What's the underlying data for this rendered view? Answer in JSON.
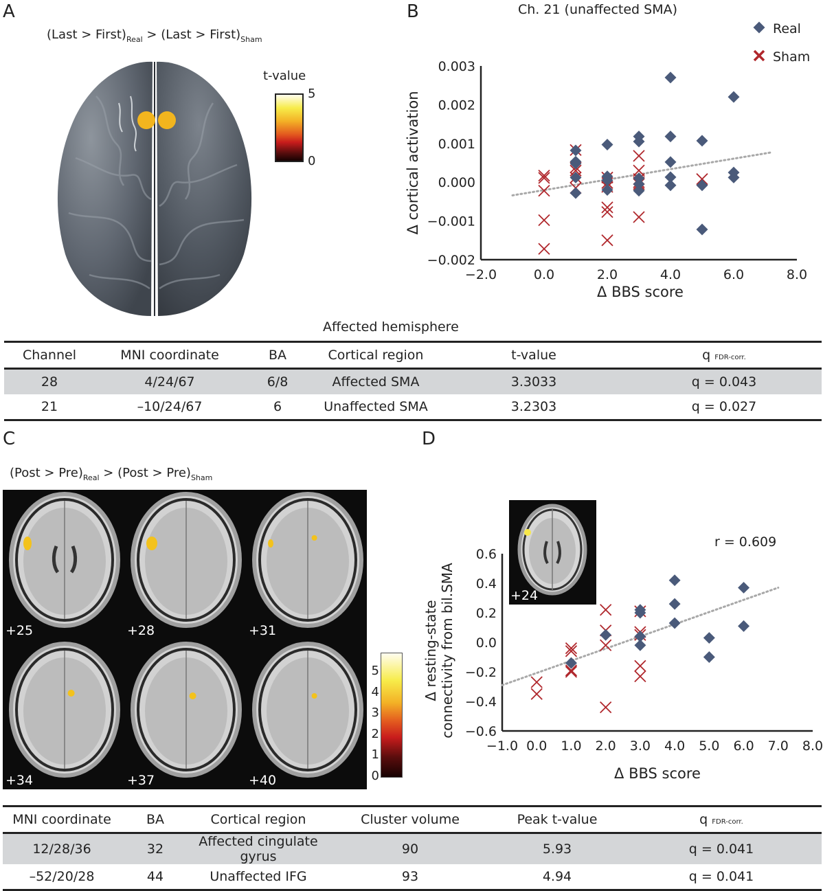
{
  "panel_a": {
    "letter": "A",
    "contrast": {
      "part1": "(Last > First)",
      "sub1": "Real",
      "part2": " > (Last > First)",
      "sub2": "Sham"
    },
    "colorbar": {
      "title": "t-value",
      "max_label": "5",
      "min_label": "0"
    },
    "activation_color": "#f2b51e"
  },
  "table_top": {
    "caption": "Affected hemisphere",
    "headers": [
      "Channel",
      "MNI coordinate",
      "BA",
      "Cortical region",
      "t-value",
      "q"
    ],
    "q_sub": "FDR-corr.",
    "rows": [
      [
        "28",
        "4/24/67",
        "6/8",
        "Affected SMA",
        "3.3033",
        "q = 0.043"
      ],
      [
        "21",
        "–10/24/67",
        "6",
        "Unaffected SMA",
        "3.2303",
        "q = 0.027"
      ]
    ]
  },
  "panel_c": {
    "letter": "C",
    "contrast": {
      "part1": "(Post > Pre)",
      "sub1": "Real",
      "part2": " > (Post > Pre)",
      "sub2": "Sham"
    },
    "slices": [
      "+25",
      "+28",
      "+31",
      "+34",
      "+37",
      "+40"
    ],
    "colorbar_ticks": [
      "5",
      "4",
      "3",
      "2",
      "1",
      "0"
    ]
  },
  "table_bottom": {
    "headers": [
      "MNI coordinate",
      "BA",
      "Cortical region",
      "Cluster volume",
      "Peak t-value",
      "q"
    ],
    "q_sub": "FDR-corr.",
    "rows": [
      [
        "12/28/36",
        "32",
        "Affected cingulate gyrus",
        "90",
        "5.93",
        "q = 0.041"
      ],
      [
        "–52/20/28",
        "44",
        "Unaffected IFG",
        "93",
        "4.94",
        "q = 0.041"
      ]
    ]
  },
  "colors": {
    "real": "#4a5a7a",
    "sham": "#b0272c",
    "trend": "#a8a8a8",
    "axis": "#222222"
  },
  "chart_data": [
    {
      "id": "B",
      "letter": "B",
      "type": "scatter",
      "title": "Ch. 21 (unaffected SMA)",
      "xlabel": "Δ BBS score",
      "ylabel": "Δ cortical activation",
      "xlim": [
        -2.0,
        8.0
      ],
      "ylim": [
        -0.002,
        0.003
      ],
      "xticks": [
        "−2.0",
        "0.0",
        "2.0",
        "4.0",
        "6.0",
        "8.0"
      ],
      "xtick_values": [
        -2,
        0,
        2,
        4,
        6,
        8
      ],
      "yticks": [
        "0.003",
        "0.002",
        "0.001",
        "0.000",
        "−0.001",
        "−0.002"
      ],
      "ytick_values": [
        0.003,
        0.002,
        0.001,
        0.0,
        -0.001,
        -0.002
      ],
      "legend": [
        "Real",
        "Sham"
      ],
      "legend_position": "top-right",
      "grid": false,
      "trendline": {
        "x": [
          -1.0,
          7.2
        ],
        "y": [
          -0.00034,
          0.00077
        ]
      },
      "series": [
        {
          "name": "Real",
          "marker": "diamond",
          "points": [
            [
              1,
              0.00082
            ],
            [
              1,
              0.00053
            ],
            [
              1,
              0.00048
            ],
            [
              1,
              0.00012
            ],
            [
              1,
              -0.00028
            ],
            [
              2,
              0.00097
            ],
            [
              2,
              0.00015
            ],
            [
              2,
              5e-05
            ],
            [
              2,
              -0.0002
            ],
            [
              3,
              0.00118
            ],
            [
              3,
              0.00105
            ],
            [
              3,
              0.0001
            ],
            [
              3,
              -5e-05
            ],
            [
              3,
              -0.00022
            ],
            [
              4,
              0.0027
            ],
            [
              4,
              0.00118
            ],
            [
              4,
              0.00052
            ],
            [
              4,
              0.00013
            ],
            [
              4,
              -8e-05
            ],
            [
              5,
              0.00107
            ],
            [
              5,
              -8e-05
            ],
            [
              5,
              -0.00122
            ],
            [
              6,
              0.0022
            ],
            [
              6,
              0.00025
            ],
            [
              6,
              0.00012
            ]
          ]
        },
        {
          "name": "Sham",
          "marker": "x",
          "points": [
            [
              0,
              0.00017
            ],
            [
              0,
              0.00011
            ],
            [
              0,
              -0.00022
            ],
            [
              0,
              -0.00098
            ],
            [
              0,
              -0.00172
            ],
            [
              1,
              0.00083
            ],
            [
              1,
              0.00038
            ],
            [
              1,
              0.0003
            ],
            [
              1,
              0.00012
            ],
            [
              1,
              -0.00015
            ],
            [
              2,
              0.00012
            ],
            [
              2,
              -2e-05
            ],
            [
              2,
              -0.00012
            ],
            [
              2,
              -0.00065
            ],
            [
              2,
              -0.00077
            ],
            [
              2,
              -0.0015
            ],
            [
              3,
              0.00068
            ],
            [
              3,
              0.0003
            ],
            [
              3,
              8e-05
            ],
            [
              3,
              0.0
            ],
            [
              3,
              -5e-05
            ],
            [
              3,
              -0.0009
            ],
            [
              5,
              8e-05
            ]
          ]
        }
      ]
    },
    {
      "id": "D",
      "letter": "D",
      "type": "scatter",
      "title": "",
      "annotation": "r = 0.609",
      "inset_label": "+24",
      "xlabel": "Δ BBS score",
      "ylabel_line1": "Δ resting-state",
      "ylabel_line2": "connectivity from bil.SMA",
      "xlim": [
        -1.0,
        8.0
      ],
      "ylim": [
        -0.6,
        0.6
      ],
      "xticks": [
        "−1.0",
        "0.0",
        "1.0",
        "2.0",
        "3.0",
        "4.0",
        "5.0",
        "6.0",
        "7.0",
        "8.0"
      ],
      "xtick_values": [
        -1,
        0,
        1,
        2,
        3,
        4,
        5,
        6,
        7,
        8
      ],
      "yticks": [
        "0.6",
        "0.4",
        "0.2",
        "0.0",
        "−0.2",
        "−0.4",
        "−0.6"
      ],
      "ytick_values": [
        0.6,
        0.4,
        0.2,
        0.0,
        -0.2,
        -0.4,
        -0.6
      ],
      "grid": false,
      "trendline": {
        "x": [
          -1.0,
          7.0
        ],
        "y": [
          -0.29,
          0.37
        ]
      },
      "series": [
        {
          "name": "Real",
          "marker": "diamond",
          "points": [
            [
              1,
              -0.14
            ],
            [
              2,
              0.05
            ],
            [
              3,
              0.22
            ],
            [
              3,
              0.2
            ],
            [
              3,
              0.04
            ],
            [
              3,
              -0.02
            ],
            [
              4,
              0.42
            ],
            [
              4,
              0.26
            ],
            [
              4,
              0.13
            ],
            [
              5,
              0.03
            ],
            [
              5,
              -0.1
            ],
            [
              6,
              0.37
            ],
            [
              6,
              0.11
            ]
          ]
        },
        {
          "name": "Sham",
          "marker": "x",
          "points": [
            [
              0,
              -0.27
            ],
            [
              0,
              -0.35
            ],
            [
              1,
              -0.04
            ],
            [
              1,
              -0.06
            ],
            [
              1,
              -0.19
            ],
            [
              1,
              -0.2
            ],
            [
              2,
              0.22
            ],
            [
              2,
              0.08
            ],
            [
              2,
              -0.02
            ],
            [
              2,
              -0.44
            ],
            [
              3,
              0.21
            ],
            [
              3,
              0.07
            ],
            [
              3,
              0.05
            ],
            [
              3,
              -0.16
            ],
            [
              3,
              -0.23
            ]
          ]
        }
      ]
    }
  ]
}
